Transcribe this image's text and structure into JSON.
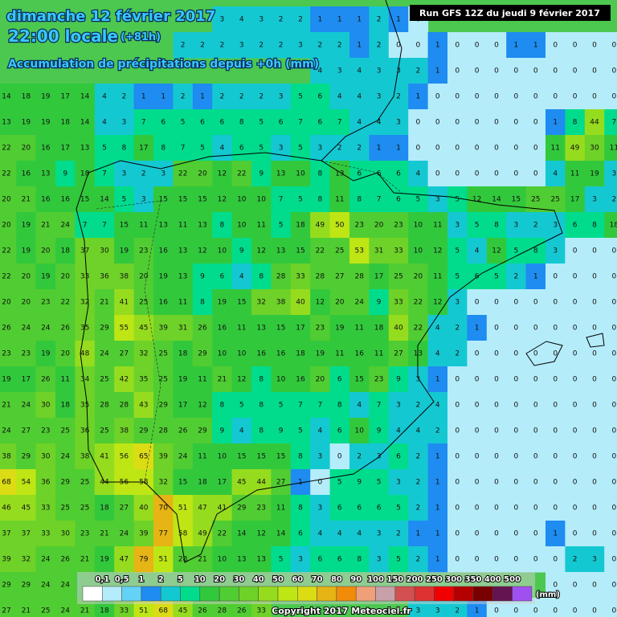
{
  "header": {
    "date": "dimanche 12 février 2017",
    "time": "22:00 locale",
    "lead": "(+81h)",
    "subtitle": "Accumulation de précipitations depuis +0h (mm)",
    "run": "Run GFS 12Z du jeudi 9 février 2017"
  },
  "grid": {
    "rows": [
      [
        null,
        null,
        null,
        null,
        null,
        null,
        null,
        null,
        null,
        null,
        null,
        3,
        4,
        3,
        2,
        2,
        1,
        1,
        1,
        2,
        1,
        0,
        null,
        null,
        null,
        null,
        null,
        null,
        null,
        null,
        null,
        null
      ],
      [
        null,
        null,
        null,
        null,
        null,
        null,
        null,
        null,
        null,
        2,
        2,
        2,
        3,
        2,
        2,
        3,
        2,
        2,
        1,
        2,
        0,
        0,
        1,
        0,
        0,
        0,
        1,
        1,
        0,
        0,
        0,
        0
      ],
      [
        null,
        null,
        null,
        null,
        null,
        null,
        null,
        null,
        null,
        null,
        null,
        null,
        null,
        null,
        null,
        null,
        4,
        3,
        4,
        3,
        3,
        2,
        1,
        0,
        0,
        0,
        0,
        0,
        0,
        0,
        0,
        0
      ],
      [
        14,
        18,
        19,
        17,
        14,
        4,
        2,
        1,
        1,
        2,
        1,
        2,
        2,
        2,
        3,
        5,
        6,
        4,
        4,
        3,
        2,
        1,
        0,
        0,
        0,
        0,
        0,
        0,
        0,
        0,
        0,
        0
      ],
      [
        13,
        19,
        19,
        18,
        14,
        4,
        3,
        7,
        6,
        5,
        6,
        6,
        8,
        5,
        6,
        7,
        6,
        7,
        4,
        4,
        3,
        0,
        0,
        0,
        0,
        0,
        0,
        0,
        1,
        8,
        44,
        7
      ],
      [
        22,
        20,
        16,
        17,
        13,
        5,
        8,
        17,
        8,
        7,
        5,
        4,
        6,
        5,
        3,
        5,
        3,
        2,
        2,
        1,
        1,
        0,
        0,
        0,
        0,
        0,
        0,
        0,
        11,
        49,
        30,
        11
      ],
      [
        22,
        16,
        13,
        9,
        18,
        7,
        3,
        2,
        3,
        22,
        20,
        12,
        22,
        9,
        13,
        10,
        8,
        13,
        6,
        6,
        6,
        4,
        0,
        0,
        0,
        0,
        0,
        0,
        4,
        11,
        19,
        3
      ],
      [
        20,
        21,
        16,
        16,
        15,
        14,
        5,
        3,
        15,
        15,
        15,
        12,
        10,
        10,
        7,
        5,
        8,
        11,
        8,
        7,
        6,
        5,
        3,
        5,
        12,
        14,
        15,
        25,
        25,
        17,
        3,
        2
      ],
      [
        20,
        19,
        21,
        24,
        7,
        7,
        15,
        11,
        13,
        11,
        13,
        8,
        10,
        11,
        5,
        18,
        49,
        50,
        23,
        20,
        23,
        10,
        11,
        3,
        5,
        8,
        3,
        2,
        3,
        6,
        8,
        18
      ],
      [
        22,
        19,
        20,
        18,
        37,
        30,
        19,
        23,
        16,
        13,
        12,
        10,
        9,
        12,
        13,
        15,
        22,
        25,
        53,
        31,
        33,
        10,
        12,
        5,
        4,
        12,
        5,
        8,
        3,
        0,
        0,
        0
      ],
      [
        22,
        20,
        19,
        20,
        33,
        36,
        38,
        20,
        19,
        13,
        9,
        6,
        4,
        8,
        28,
        33,
        28,
        27,
        28,
        17,
        25,
        20,
        11,
        5,
        6,
        5,
        2,
        1,
        0,
        0,
        0,
        0
      ],
      [
        20,
        20,
        23,
        22,
        32,
        21,
        41,
        25,
        16,
        11,
        8,
        19,
        15,
        32,
        38,
        40,
        12,
        20,
        24,
        9,
        33,
        22,
        12,
        3,
        0,
        0,
        0,
        0,
        0,
        0,
        0,
        0
      ],
      [
        26,
        24,
        24,
        26,
        35,
        29,
        55,
        45,
        39,
        31,
        26,
        16,
        11,
        13,
        15,
        17,
        23,
        19,
        11,
        18,
        40,
        22,
        4,
        2,
        1,
        0,
        0,
        0,
        0,
        0,
        0,
        0
      ],
      [
        23,
        23,
        19,
        20,
        48,
        24,
        27,
        32,
        25,
        18,
        29,
        10,
        10,
        16,
        16,
        18,
        19,
        11,
        16,
        11,
        27,
        13,
        4,
        2,
        0,
        0,
        0,
        0,
        0,
        0,
        0,
        0
      ],
      [
        19,
        17,
        26,
        11,
        34,
        25,
        42,
        35,
        25,
        19,
        11,
        21,
        12,
        8,
        10,
        16,
        20,
        6,
        15,
        23,
        9,
        3,
        1,
        0,
        0,
        0,
        0,
        0,
        0,
        0,
        0,
        0
      ],
      [
        21,
        24,
        30,
        18,
        35,
        28,
        28,
        43,
        29,
        17,
        12,
        8,
        5,
        8,
        5,
        7,
        7,
        8,
        4,
        7,
        3,
        2,
        4,
        0,
        0,
        0,
        0,
        0,
        0,
        0,
        0,
        0
      ],
      [
        24,
        27,
        23,
        25,
        36,
        25,
        38,
        29,
        28,
        26,
        29,
        9,
        4,
        8,
        9,
        5,
        4,
        6,
        10,
        9,
        4,
        4,
        2,
        0,
        0,
        0,
        0,
        0,
        0,
        0,
        0,
        0
      ],
      [
        38,
        29,
        30,
        24,
        38,
        41,
        56,
        65,
        39,
        24,
        11,
        10,
        15,
        15,
        15,
        8,
        3,
        0,
        2,
        3,
        6,
        2,
        1,
        0,
        0,
        0,
        0,
        0,
        0,
        0,
        0,
        0
      ],
      [
        68,
        54,
        36,
        29,
        25,
        44,
        56,
        58,
        32,
        15,
        18,
        17,
        45,
        44,
        27,
        1,
        0,
        5,
        9,
        5,
        3,
        2,
        1,
        0,
        0,
        0,
        0,
        0,
        0,
        0,
        0,
        0
      ],
      [
        46,
        45,
        33,
        25,
        25,
        18,
        27,
        40,
        70,
        51,
        47,
        41,
        29,
        23,
        11,
        8,
        3,
        6,
        6,
        6,
        5,
        2,
        1,
        0,
        0,
        0,
        0,
        0,
        0,
        0,
        0,
        0
      ],
      [
        37,
        37,
        33,
        30,
        23,
        21,
        24,
        39,
        77,
        58,
        49,
        22,
        14,
        12,
        14,
        6,
        4,
        4,
        4,
        3,
        2,
        1,
        1,
        0,
        0,
        0,
        0,
        0,
        1,
        0,
        0,
        0
      ],
      [
        39,
        32,
        24,
        26,
        21,
        19,
        47,
        79,
        51,
        28,
        21,
        10,
        13,
        13,
        5,
        3,
        6,
        6,
        8,
        3,
        5,
        2,
        1,
        0,
        0,
        0,
        0,
        0,
        0,
        2,
        3,
        0
      ],
      [
        29,
        29,
        24,
        24,
        null,
        null,
        null,
        null,
        null,
        null,
        null,
        null,
        null,
        null,
        null,
        null,
        null,
        null,
        null,
        null,
        null,
        null,
        null,
        null,
        null,
        null,
        null,
        null,
        0,
        0,
        0,
        0
      ],
      [
        27,
        21,
        25,
        24,
        21,
        18,
        33,
        51,
        68,
        45,
        26,
        28,
        26,
        33,
        null,
        null,
        null,
        null,
        null,
        null,
        null,
        3,
        3,
        2,
        1,
        0,
        0,
        0,
        0,
        0,
        0,
        0
      ]
    ]
  },
  "legend": {
    "labels": [
      {
        "value": 0.1,
        "label": "0,1"
      },
      {
        "value": 0.5,
        "label": "0,5"
      },
      1,
      2,
      5,
      10,
      20,
      30,
      40,
      50,
      60,
      70,
      80,
      90,
      100,
      150,
      200,
      250,
      300,
      350,
      400,
      500
    ],
    "colors": [
      "#ffffff",
      "#b4ecfa",
      "#64d2f5",
      "#1e8cf0",
      "#14c8d2",
      "#00dc8c",
      "#32c83c",
      "#50cd32",
      "#6ed228",
      "#96dc1e",
      "#bee614",
      "#dcdc14",
      "#e6b414",
      "#f08c0a",
      "#f0a078",
      "#c8a0aa",
      "#d25050",
      "#dc3232",
      "#f00000",
      "#b40000",
      "#780000",
      "#641450",
      "#a050f0"
    ],
    "unit": "(mm)"
  },
  "footer": {
    "copyright": "Copyright 2017 Meteociel.fr"
  }
}
